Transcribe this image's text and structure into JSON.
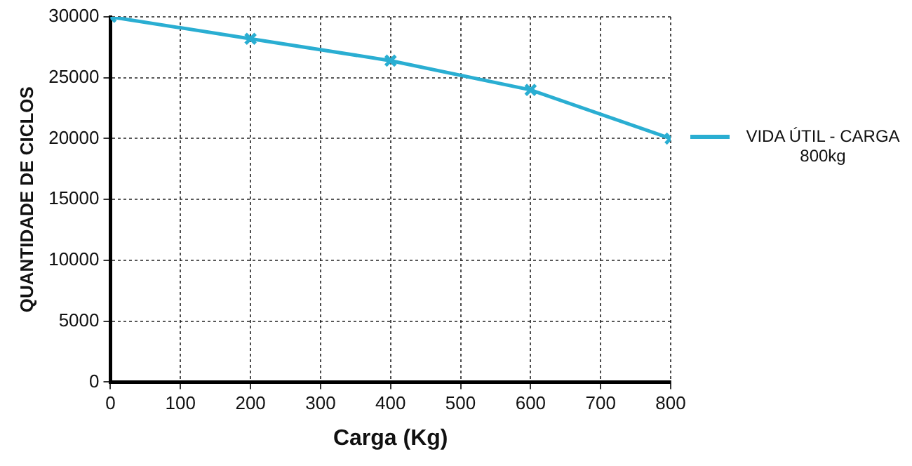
{
  "chart_data": {
    "type": "line",
    "xlabel": "Carga (Kg)",
    "ylabel": "QUANTIDADE DE CICLOS",
    "x": [
      0,
      200,
      400,
      600,
      800
    ],
    "series": [
      {
        "name": "VIDA ÚTIL - CARGA 800kg",
        "color": "#2aaed2",
        "values": [
          30000,
          28200,
          26400,
          24000,
          20000
        ]
      }
    ],
    "xlim": [
      0,
      800
    ],
    "xticks": [
      0,
      100,
      200,
      300,
      400,
      500,
      600,
      700,
      800
    ],
    "ylim": [
      0,
      30000
    ],
    "yticks": [
      0,
      5000,
      10000,
      15000,
      20000,
      25000,
      30000
    ],
    "grid": true,
    "legend": "right",
    "marker": "cross",
    "line_style": "solid"
  }
}
